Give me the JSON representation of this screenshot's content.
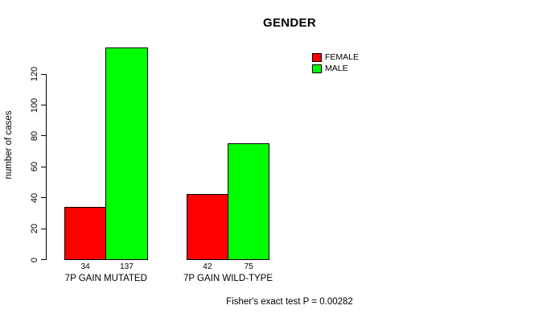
{
  "chart_data": {
    "type": "bar",
    "title": "GENDER",
    "xlabel": "",
    "ylabel": "number of cases",
    "categories": [
      "7P GAIN MUTATED",
      "7P GAIN WILD-TYPE"
    ],
    "series": [
      {
        "name": "FEMALE",
        "color": "#ff0000",
        "values": [
          34,
          42
        ]
      },
      {
        "name": "MALE",
        "color": "#00ff00",
        "values": [
          137,
          75
        ]
      }
    ],
    "bar_value_labels": [
      [
        34,
        42
      ],
      [
        137,
        75
      ]
    ],
    "yticks": [
      0,
      20,
      40,
      60,
      80,
      100,
      120
    ],
    "ylim": [
      0,
      137
    ],
    "grid": false,
    "legend_position": "top-right-inside",
    "bar_border_color": "#000000",
    "annotation": "Fisher's exact test P = 0.00282"
  }
}
